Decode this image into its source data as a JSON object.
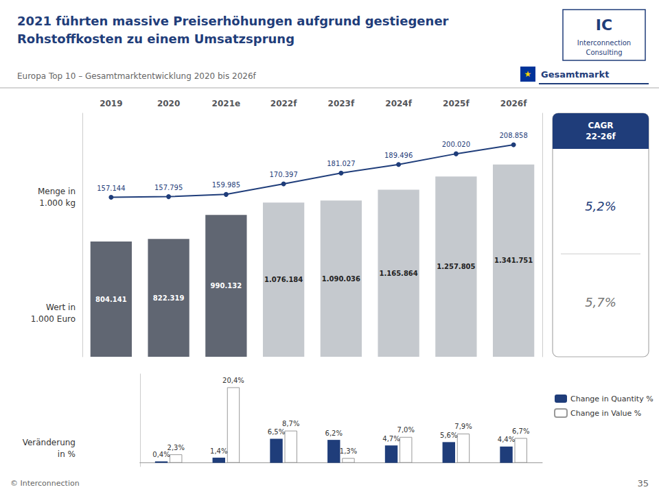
{
  "chart_data": [
    {
      "type": "bar",
      "title": "2021 führten massive Preiserhöhungen aufgrund gestiegener\nRohstoffkosten zu einem Umsatzsprung",
      "subtitle": "Europa Top 10 – Gesamtmarktentwicklung 2020 bis 2026f",
      "annotations": [
        "Gesamtmarkt",
        "★",
        "IC",
        "Interconnection",
        "Consulting",
        "CAGR\n22-26f",
        "5,2%",
        "5,7%",
        "© Interconnection",
        "35"
      ],
      "categories": [
        "2019",
        "2020",
        "2021e",
        "2022f",
        "2023f",
        "2024f",
        "2025f",
        "2026f"
      ],
      "ylabel": "Wert in\n1.000 Euro",
      "y2label": "Menge in\n1.000 kg",
      "ylim": [
        0,
        1700000
      ],
      "y2lim": [
        0,
        240
      ],
      "tick_labels": "x",
      "data_labels": true,
      "series": [
        {
          "type": "bar",
          "colors": [
            "#606672",
            "#606672",
            "#606672",
            "#c5c9ce",
            "#c5c9ce",
            "#c5c9ce",
            "#c5c9ce",
            "#c5c9ce"
          ],
          "values": [
            804141,
            822319,
            990132,
            1076184,
            1090036,
            1165864,
            1257805,
            1341751
          ],
          "value_labels": [
            "804.141",
            "822.319",
            "990.132",
            "1.076.184",
            "1.090.036",
            "1.165.864",
            "1.257.805",
            "1.341.751"
          ]
        },
        {
          "type": "line",
          "axis": "y2",
          "color": "#1f3d7a",
          "marker": "circle",
          "values": [
            157.144,
            157.795,
            159.985,
            170.397,
            181.027,
            189.496,
            200.02,
            208.858
          ],
          "value_labels": [
            "157.144",
            "157.795",
            "159.985",
            "170.397",
            "181.027",
            "189.496",
            "200.020",
            "208.858"
          ]
        }
      ]
    },
    {
      "type": "bar",
      "categories": [
        "2020",
        "2021e",
        "2022f",
        "2023f",
        "2024f",
        "2025f",
        "2026f"
      ],
      "ylabel": "Veränderung\nin %",
      "ylim": [
        -1,
        24
      ],
      "tick_labels": false,
      "data_labels": true,
      "legend": "right",
      "series": [
        {
          "name": "Change in Quantity %",
          "color": "#1f3d7a",
          "values": [
            0.4,
            1.4,
            6.5,
            6.2,
            4.7,
            5.6,
            4.4
          ],
          "value_labels": [
            "0,4%",
            "1,4%",
            "6,5%",
            "6,2%",
            "4,7%",
            "5,6%",
            "4,4%"
          ]
        },
        {
          "name": "Change in Value %",
          "color": "#ffffff",
          "values": [
            2.3,
            20.4,
            8.7,
            1.3,
            7.0,
            7.9,
            6.7
          ],
          "value_labels": [
            "2,3%",
            "20,4%",
            "8,7%",
            "1,3%",
            "7,0%",
            "7,9%",
            "6,7%"
          ]
        }
      ]
    }
  ]
}
